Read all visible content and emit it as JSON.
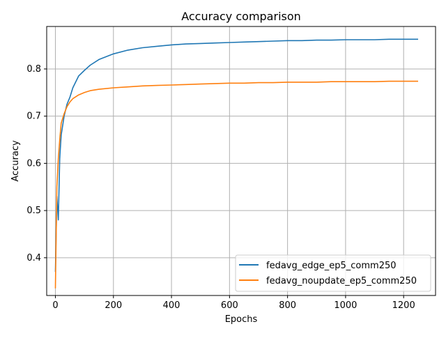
{
  "chart_data": {
    "type": "line",
    "title": "Accuracy comparison",
    "xlabel": "Epochs",
    "ylabel": "Accuracy",
    "xlim": [
      -30,
      1310
    ],
    "ylim": [
      0.32,
      0.89
    ],
    "x_ticks": [
      0,
      200,
      400,
      600,
      800,
      1000,
      1200
    ],
    "y_ticks": [
      0.4,
      0.5,
      0.6,
      0.7,
      0.8
    ],
    "x_tick_labels": [
      "0",
      "200",
      "400",
      "600",
      "800",
      "1000",
      "1200"
    ],
    "y_tick_labels": [
      "0.4",
      "0.5",
      "0.6",
      "0.7",
      "0.8"
    ],
    "grid": true,
    "legend_position": "lower-right",
    "series": [
      {
        "name": "fedavg_edge_ep5_comm250",
        "color": "#1f77b4",
        "x": [
          0,
          5,
          10,
          15,
          20,
          30,
          40,
          50,
          60,
          80,
          100,
          120,
          150,
          200,
          250,
          300,
          350,
          400,
          450,
          500,
          550,
          600,
          650,
          700,
          750,
          800,
          850,
          900,
          950,
          1000,
          1050,
          1100,
          1150,
          1200,
          1250
        ],
        "y": [
          0.37,
          0.53,
          0.48,
          0.61,
          0.66,
          0.7,
          0.725,
          0.74,
          0.76,
          0.785,
          0.797,
          0.808,
          0.82,
          0.832,
          0.84,
          0.845,
          0.848,
          0.851,
          0.853,
          0.854,
          0.855,
          0.856,
          0.857,
          0.858,
          0.859,
          0.86,
          0.86,
          0.861,
          0.861,
          0.862,
          0.862,
          0.862,
          0.863,
          0.863,
          0.863
        ]
      },
      {
        "name": "fedavg_noupdate_ep5_comm250",
        "color": "#ff7f0e",
        "x": [
          0,
          5,
          10,
          15,
          20,
          30,
          40,
          50,
          60,
          80,
          100,
          120,
          150,
          200,
          250,
          300,
          350,
          400,
          450,
          500,
          550,
          600,
          650,
          700,
          750,
          800,
          850,
          900,
          950,
          1000,
          1050,
          1100,
          1150,
          1200,
          1250
        ],
        "y": [
          0.335,
          0.55,
          0.61,
          0.65,
          0.685,
          0.705,
          0.72,
          0.73,
          0.737,
          0.745,
          0.75,
          0.754,
          0.757,
          0.76,
          0.762,
          0.764,
          0.765,
          0.766,
          0.767,
          0.768,
          0.769,
          0.77,
          0.77,
          0.771,
          0.771,
          0.772,
          0.772,
          0.772,
          0.773,
          0.773,
          0.773,
          0.773,
          0.774,
          0.774,
          0.774
        ]
      }
    ]
  }
}
